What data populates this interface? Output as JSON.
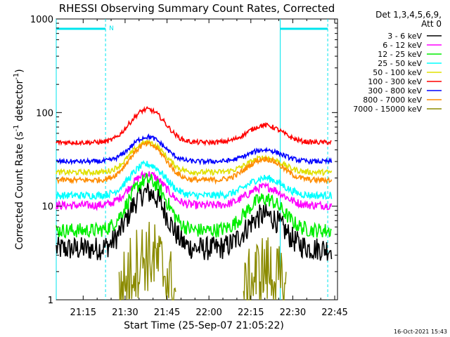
{
  "chart_data": {
    "type": "line",
    "title": "RHESSI Observing Summary Count Rates, Corrected",
    "xlabel": "Start Time (25-Sep-07 21:05:22)",
    "ylabel_main": "Corrected Count Rate (s",
    "ylabel_sup1": "-1",
    "ylabel_mid": " detector",
    "ylabel_sup2": "-1",
    "ylabel_end": ")",
    "yscale": "log",
    "ylim": [
      1,
      1000
    ],
    "xlim_minutes": [
      21.08,
      22.77
    ],
    "x_tick_labels": [
      "21:15",
      "21:30",
      "21:45",
      "22:00",
      "22:15",
      "22:30",
      "22:45"
    ],
    "x_tick_minutes": [
      1275,
      1290,
      1305,
      1320,
      1335,
      1350,
      1365
    ],
    "y_tick_labels": [
      "1",
      "10",
      "100",
      "1000"
    ],
    "y_tick_values": [
      1,
      10,
      100,
      1000
    ],
    "legend_header": [
      "Det 1,3,4,5,6,9,",
      "Att 0"
    ],
    "legend_placement": "right",
    "timestamp": "16-Oct-2021 15:43",
    "night_markers": {
      "color": "#00e5ee",
      "label": "N",
      "bars": [
        {
          "start": "21:05:22",
          "end": "21:23:00"
        },
        {
          "start": "22:25:30",
          "end": "22:42:30"
        }
      ]
    },
    "series": [
      {
        "name": "3 - 6 keV",
        "color": "#000000",
        "base": 3.5,
        "peak1": 14,
        "peak2": 8,
        "noise": 0.13
      },
      {
        "name": "6 - 12 keV",
        "color": "#ff00ff",
        "base": 10.2,
        "peak1": 22,
        "peak2": 16,
        "noise": 0.045
      },
      {
        "name": "12 - 25 keV",
        "color": "#00ee00",
        "base": 5.5,
        "peak1": 19,
        "peak2": 12,
        "noise": 0.08
      },
      {
        "name": "25 - 50 keV",
        "color": "#00ffff",
        "base": 13,
        "peak1": 28,
        "peak2": 20,
        "noise": 0.04
      },
      {
        "name": "50 - 100 keV",
        "color": "#e0e000",
        "base": 23,
        "peak1": 48,
        "peak2": 33,
        "noise": 0.03
      },
      {
        "name": "100 - 300 keV",
        "color": "#ff0000",
        "base": 48,
        "peak1": 108,
        "peak2": 73,
        "noise": 0.025
      },
      {
        "name": "300 - 800 keV",
        "color": "#0000ff",
        "base": 30,
        "peak1": 55,
        "peak2": 40,
        "noise": 0.025
      },
      {
        "name": "800 - 7000 keV",
        "color": "#ff8c00",
        "base": 19,
        "peak1": 46,
        "peak2": 32,
        "noise": 0.03
      },
      {
        "name": "7000 - 15000 keV",
        "color": "#8b8b00",
        "base": 0,
        "peak1": 3.5,
        "peak2": 2.5,
        "noise": 0.15
      }
    ]
  }
}
